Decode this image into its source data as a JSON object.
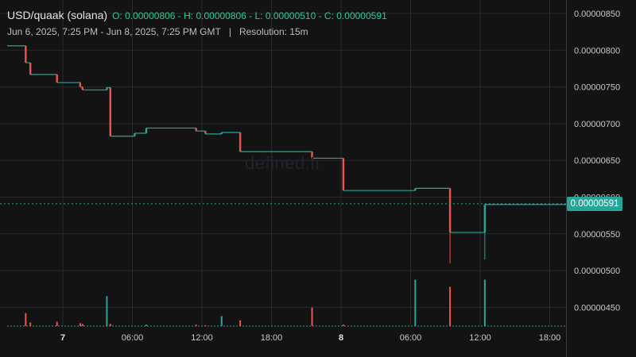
{
  "header": {
    "title": "USD/quaak (solana)",
    "ohlc": "O: 0.00000806 - H: 0.00000806 - L: 0.00000510 - C: 0.00000591",
    "range": "Jun 6, 2025, 7:25 PM - Jun 8, 2025, 7:25 PM GMT",
    "separator": "|",
    "resolution": "Resolution: 15m"
  },
  "watermark": "defined.fi",
  "last_price_label": "0.00000591",
  "colors": {
    "background": "#131313",
    "grid": "#2a2a2a",
    "up": "#26a69a",
    "down": "#ef5350",
    "text": "#c9c9c9"
  },
  "chart_data": {
    "type": "candlestick",
    "x_tick_labels": [
      "7",
      "06:00",
      "12:00",
      "18:00",
      "8",
      "06:00",
      "12:00",
      "18:00"
    ],
    "y_tick_labels": [
      "0.00000850",
      "0.00000800",
      "0.00000750",
      "0.00000700",
      "0.00000650",
      "0.00000600",
      "0.00000550",
      "0.00000500",
      "0.00000450"
    ],
    "ylim": [
      4.2e-06,
      8.5e-06
    ],
    "last_price": 5.91e-06,
    "steps": [
      {
        "t": -5.0,
        "open": 8.06e-06,
        "close": 8.06e-06,
        "high": 8.06e-06,
        "low": 8.06e-06,
        "volume": 0.0
      },
      {
        "t": -3.2,
        "open": 8.06e-06,
        "close": 7.83e-06,
        "high": 8.06e-06,
        "low": 7.83e-06,
        "volume": 0.18
      },
      {
        "t": -2.8,
        "open": 7.83e-06,
        "close": 7.67e-06,
        "high": 7.83e-06,
        "low": 7.67e-06,
        "volume": 0.05
      },
      {
        "t": -0.5,
        "open": 7.67e-06,
        "close": 7.56e-06,
        "high": 7.67e-06,
        "low": 7.56e-06,
        "volume": 0.06
      },
      {
        "t": 1.5,
        "open": 7.56e-06,
        "close": 7.5e-06,
        "high": 7.56e-06,
        "low": 7.5e-06,
        "volume": 0.04
      },
      {
        "t": 1.7,
        "open": 7.5e-06,
        "close": 7.46e-06,
        "high": 7.5e-06,
        "low": 7.46e-06,
        "volume": 0.03
      },
      {
        "t": 3.8,
        "open": 7.46e-06,
        "close": 7.49e-06,
        "high": 7.5e-06,
        "low": 7.46e-06,
        "volume": 0.42
      },
      {
        "t": 4.1,
        "open": 7.49e-06,
        "close": 6.83e-06,
        "high": 7.5e-06,
        "low": 6.83e-06,
        "volume": 0.03
      },
      {
        "t": 6.2,
        "open": 6.83e-06,
        "close": 6.87e-06,
        "high": 6.87e-06,
        "low": 6.83e-06,
        "volume": 0.0
      },
      {
        "t": 7.2,
        "open": 6.87e-06,
        "close": 6.94e-06,
        "high": 6.94e-06,
        "low": 6.87e-06,
        "volume": 0.02
      },
      {
        "t": 11.5,
        "open": 6.94e-06,
        "close": 6.9e-06,
        "high": 6.94e-06,
        "low": 6.9e-06,
        "volume": 0.02
      },
      {
        "t": 12.3,
        "open": 6.9e-06,
        "close": 6.86e-06,
        "high": 6.9e-06,
        "low": 6.86e-06,
        "volume": 0.01
      },
      {
        "t": 13.7,
        "open": 6.86e-06,
        "close": 6.88e-06,
        "high": 6.88e-06,
        "low": 6.86e-06,
        "volume": 0.14
      },
      {
        "t": 15.3,
        "open": 6.88e-06,
        "close": 6.62e-06,
        "high": 6.88e-06,
        "low": 6.62e-06,
        "volume": 0.08
      },
      {
        "t": 21.5,
        "open": 6.62e-06,
        "close": 6.53e-06,
        "high": 6.62e-06,
        "low": 6.53e-06,
        "volume": 0.26
      },
      {
        "t": 24.2,
        "open": 6.53e-06,
        "close": 6.09e-06,
        "high": 6.53e-06,
        "low": 6.09e-06,
        "volume": 0.02
      },
      {
        "t": 30.4,
        "open": 6.09e-06,
        "close": 6.12e-06,
        "high": 6.12e-06,
        "low": 6.09e-06,
        "volume": 0.65
      },
      {
        "t": 33.4,
        "open": 6.12e-06,
        "close": 5.52e-06,
        "high": 6.12e-06,
        "low": 5.1e-06,
        "volume": 0.55
      },
      {
        "t": 36.4,
        "open": 5.52e-06,
        "close": 5.9e-06,
        "high": 5.9e-06,
        "low": 5.15e-06,
        "volume": 0.65
      },
      {
        "t": 45.5,
        "open": 5.9e-06,
        "close": 5.91e-06,
        "high": 5.91e-06,
        "low": 5.9e-06,
        "volume": 0.0
      }
    ]
  }
}
